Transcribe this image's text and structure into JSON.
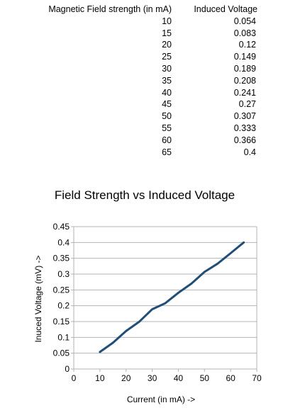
{
  "table": {
    "headers": [
      "Magnetic Field strength (in mA)",
      "Induced Voltage"
    ],
    "rows": [
      [
        "10",
        "0.054"
      ],
      [
        "15",
        "0.083"
      ],
      [
        "20",
        "0.12"
      ],
      [
        "25",
        "0.149"
      ],
      [
        "30",
        "0.189"
      ],
      [
        "35",
        "0.208"
      ],
      [
        "40",
        "0.241"
      ],
      [
        "45",
        "0.27"
      ],
      [
        "50",
        "0.307"
      ],
      [
        "55",
        "0.333"
      ],
      [
        "60",
        "0.366"
      ],
      [
        "65",
        "0.4"
      ]
    ]
  },
  "chart_data": {
    "type": "line",
    "title": "Field Strength vs Induced Voltage",
    "xlabel": "Current (in mA) ->",
    "ylabel": "Inuced Voltage (mV) ->",
    "x": [
      10,
      15,
      20,
      25,
      30,
      35,
      40,
      45,
      50,
      55,
      60,
      65
    ],
    "series": [
      {
        "values": [
          0.054,
          0.083,
          0.12,
          0.149,
          0.189,
          0.208,
          0.241,
          0.27,
          0.307,
          0.333,
          0.366,
          0.4
        ]
      }
    ],
    "xlim": [
      0,
      70
    ],
    "ylim": [
      0,
      0.45
    ],
    "xticks": [
      "0",
      "10",
      "20",
      "30",
      "40",
      "50",
      "60",
      "70"
    ],
    "yticks": [
      "0",
      "0.05",
      "0.1",
      "0.15",
      "0.2",
      "0.25",
      "0.3",
      "0.35",
      "0.4",
      "0.45"
    ],
    "grid": true,
    "line_color": "#1f4e79"
  }
}
